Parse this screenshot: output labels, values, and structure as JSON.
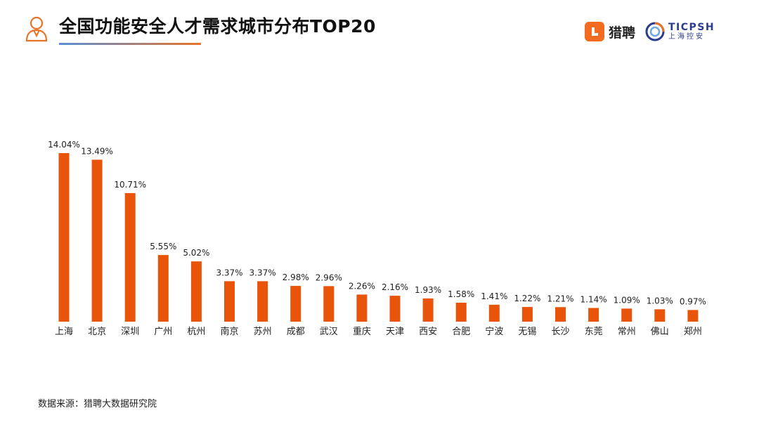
{
  "header": {
    "title": "全国功能安全人才需求城市分布TOP20",
    "icon": "person-icon",
    "accent_color": "#e8742a",
    "underline_colors": [
      "#5a8fd8",
      "#e8742a"
    ]
  },
  "logos": {
    "liepin": {
      "name": "猎聘",
      "color": "#f36a21"
    },
    "ticpsh": {
      "name": "TICPSH",
      "sub": "上海控安",
      "color": "#2b3b8f"
    }
  },
  "chart_data": {
    "type": "bar",
    "title": "全国功能安全人才需求城市分布TOP20",
    "xlabel": "",
    "ylabel": "",
    "categories": [
      "上海",
      "北京",
      "深圳",
      "广州",
      "杭州",
      "南京",
      "苏州",
      "成都",
      "武汉",
      "重庆",
      "天津",
      "西安",
      "合肥",
      "宁波",
      "无锡",
      "长沙",
      "东莞",
      "常州",
      "佛山",
      "郑州"
    ],
    "values": [
      14.04,
      13.49,
      10.71,
      5.55,
      5.02,
      3.37,
      3.37,
      2.98,
      2.96,
      2.26,
      2.16,
      1.93,
      1.58,
      1.41,
      1.22,
      1.21,
      1.14,
      1.09,
      1.03,
      0.97
    ],
    "value_labels": [
      "14.04%",
      "13.49%",
      "10.71%",
      "5.55%",
      "5.02%",
      "3.37%",
      "3.37%",
      "2.98%",
      "2.96%",
      "2.26%",
      "2.16%",
      "1.93%",
      "1.58%",
      "1.41%",
      "1.22%",
      "1.21%",
      "1.14%",
      "1.09%",
      "1.03%",
      "0.97%"
    ],
    "ylim": [
      0,
      14.04
    ],
    "grid": false,
    "bar_color": "#e8540a"
  },
  "footer": {
    "source": "数据来源：猎聘大数据研究院"
  }
}
